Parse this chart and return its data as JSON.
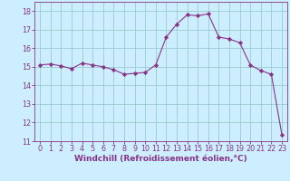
{
  "x": [
    0,
    1,
    2,
    3,
    4,
    5,
    6,
    7,
    8,
    9,
    10,
    11,
    12,
    13,
    14,
    15,
    16,
    17,
    18,
    19,
    20,
    21,
    22,
    23
  ],
  "y": [
    15.1,
    15.15,
    15.05,
    14.9,
    15.2,
    15.1,
    15.0,
    14.85,
    14.6,
    14.65,
    14.7,
    15.1,
    16.6,
    17.3,
    17.8,
    17.75,
    17.85,
    16.6,
    16.5,
    16.3,
    15.1,
    14.8,
    14.6,
    11.35
  ],
  "line_color": "#883388",
  "marker": "D",
  "marker_size": 2.2,
  "bg_color": "#cceeff",
  "grid_color": "#99cccc",
  "xlabel": "Windchill (Refroidissement éolien,°C)",
  "xlabel_color": "#883388",
  "ylim": [
    11,
    18.5
  ],
  "xlim": [
    -0.5,
    23.5
  ],
  "yticks": [
    11,
    12,
    13,
    14,
    15,
    16,
    17,
    18
  ],
  "xticks": [
    0,
    1,
    2,
    3,
    4,
    5,
    6,
    7,
    8,
    9,
    10,
    11,
    12,
    13,
    14,
    15,
    16,
    17,
    18,
    19,
    20,
    21,
    22,
    23
  ],
  "tick_color": "#883388",
  "tick_label_size": 5.8,
  "xlabel_size": 6.5,
  "linewidth": 0.8
}
